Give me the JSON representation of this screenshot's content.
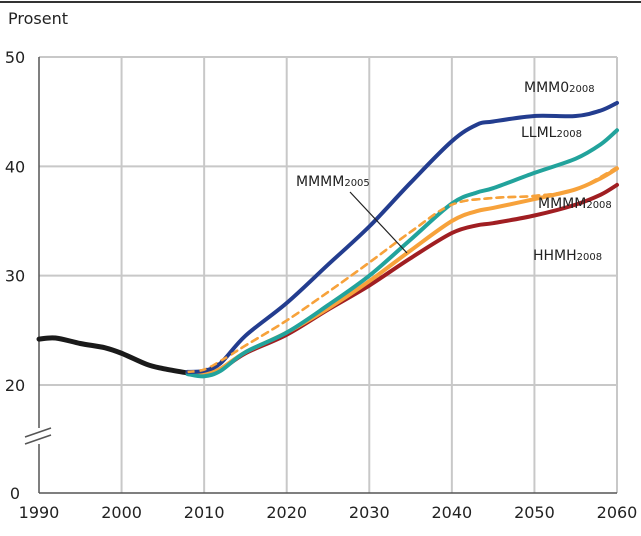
{
  "chart_data": {
    "type": "line",
    "title": "",
    "ylabel": "Prosent",
    "xlabel": "",
    "xlim": [
      1990,
      2060
    ],
    "ylim": [
      0,
      50
    ],
    "y_break": [
      0,
      20
    ],
    "x_ticks": [
      1990,
      2000,
      2010,
      2020,
      2030,
      2040,
      2050,
      2060
    ],
    "y_ticks": [
      0,
      20,
      30,
      40,
      50
    ],
    "grid": true,
    "history": {
      "color": "#1a1a1a",
      "x": [
        1990,
        1992,
        1995,
        1998,
        2000,
        2003,
        2005,
        2008
      ],
      "y": [
        24.2,
        24.3,
        23.8,
        23.4,
        22.9,
        21.9,
        21.5,
        21.1
      ]
    },
    "series": [
      {
        "name": "MMM0",
        "suffix": "2008",
        "color": "#233d8f",
        "dashed": false,
        "x": [
          2008,
          2010,
          2012,
          2015,
          2020,
          2025,
          2030,
          2035,
          2040,
          2043,
          2045,
          2050,
          2055,
          2058,
          2060
        ],
        "y": [
          21.2,
          21.3,
          22.0,
          24.5,
          27.5,
          31.0,
          34.5,
          38.5,
          42.3,
          43.8,
          44.1,
          44.6,
          44.6,
          45.1,
          45.8
        ]
      },
      {
        "name": "LLML",
        "suffix": "2008",
        "color": "#22a39c",
        "dashed": false,
        "x": [
          2008,
          2010,
          2012,
          2015,
          2020,
          2025,
          2030,
          2035,
          2040,
          2043,
          2045,
          2050,
          2055,
          2058,
          2060
        ],
        "y": [
          21.0,
          20.8,
          21.3,
          23.0,
          24.8,
          27.3,
          30.0,
          33.3,
          36.6,
          37.6,
          38.0,
          39.4,
          40.7,
          42.0,
          43.3
        ]
      },
      {
        "name": "MMMM",
        "suffix": "2008",
        "color": "#f7a23b",
        "dashed": false,
        "x": [
          2008,
          2010,
          2012,
          2015,
          2020,
          2025,
          2030,
          2035,
          2040,
          2043,
          2045,
          2050,
          2055,
          2058,
          2060
        ],
        "y": [
          21.1,
          21.0,
          21.5,
          23.0,
          24.8,
          27.0,
          29.5,
          32.3,
          35.0,
          35.9,
          36.2,
          37.0,
          37.9,
          38.9,
          39.8
        ]
      },
      {
        "name": "HHMH",
        "suffix": "2008",
        "color": "#a01e22",
        "dashed": false,
        "x": [
          2008,
          2010,
          2012,
          2015,
          2020,
          2025,
          2030,
          2035,
          2040,
          2043,
          2045,
          2050,
          2055,
          2058,
          2060
        ],
        "y": [
          21.1,
          21.0,
          21.4,
          22.9,
          24.6,
          26.9,
          29.1,
          31.6,
          33.9,
          34.6,
          34.8,
          35.5,
          36.5,
          37.4,
          38.3
        ]
      },
      {
        "name": "MMMM",
        "suffix": "2005",
        "color": "#f7a23b",
        "dashed": true,
        "x": [
          2008,
          2010,
          2012,
          2015,
          2020,
          2025,
          2030,
          2035,
          2040,
          2045,
          2050,
          2055,
          2060
        ],
        "y": [
          21.2,
          21.4,
          22.2,
          23.6,
          25.9,
          28.5,
          31.2,
          34.0,
          36.5,
          37.1,
          37.3,
          37.9,
          39.9
        ]
      }
    ]
  }
}
